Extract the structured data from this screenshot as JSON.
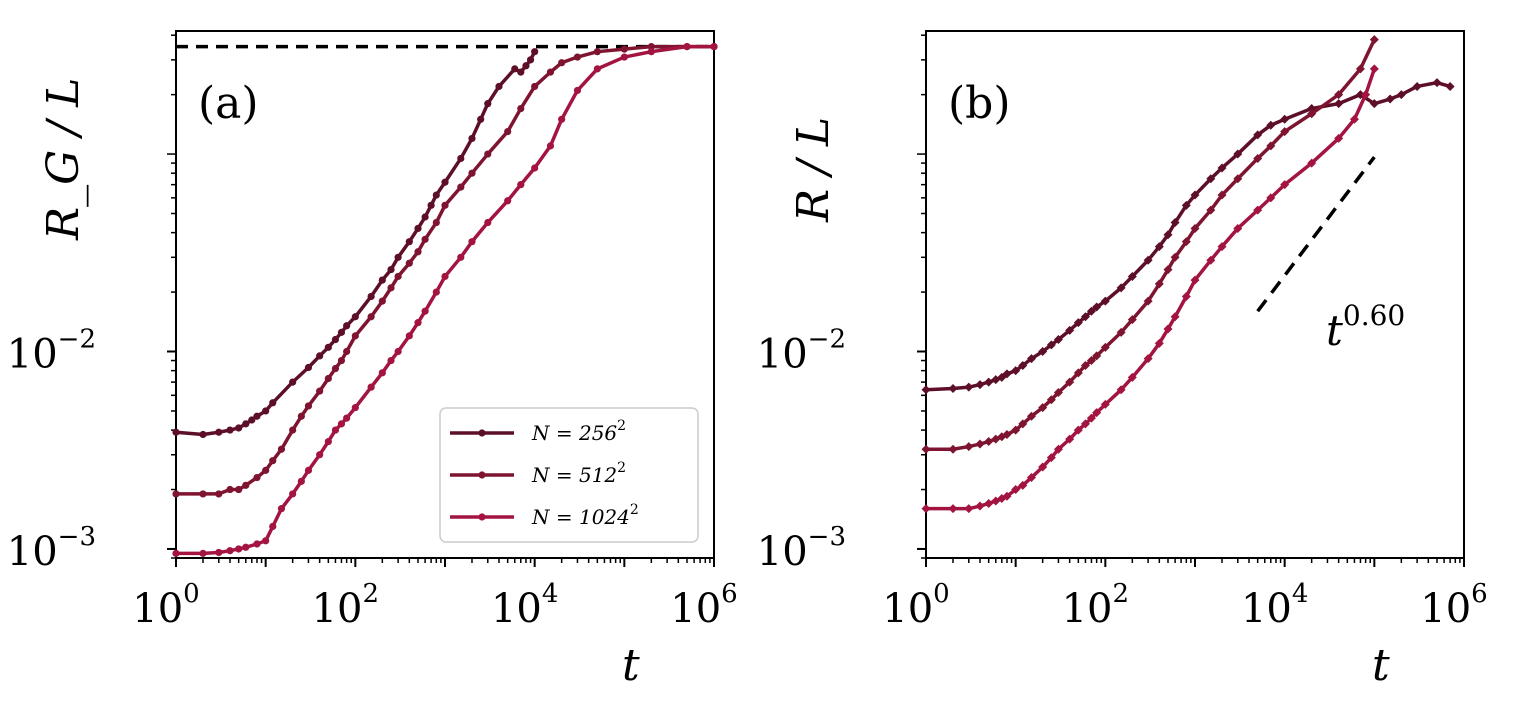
{
  "chart_data": [
    {
      "type": "line",
      "panel": "(a)",
      "xlabel": "t",
      "ylabel": "R_G / L",
      "xscale": "log",
      "yscale": "log",
      "xlim": [
        1,
        1000000
      ],
      "ylim": [
        0.0009,
        0.42
      ],
      "x_ticks": [
        {
          "base": "10",
          "exp": "0",
          "v": 1
        },
        {
          "base": "10",
          "exp": "2",
          "v": 100
        },
        {
          "base": "10",
          "exp": "4",
          "v": 10000
        },
        {
          "base": "10",
          "exp": "6",
          "v": 1000000
        }
      ],
      "y_ticks": [
        {
          "base": "10",
          "exp": "−3",
          "v": 0.001
        },
        {
          "base": "10",
          "exp": "−2",
          "v": 0.01
        }
      ],
      "reference_line": {
        "y": 0.35,
        "style": "dashed"
      },
      "legend": {
        "placement": "lower-right"
      },
      "series": [
        {
          "name": "N = 256",
          "exp": "2",
          "color": "#5e0f28",
          "x": [
            1,
            2,
            3,
            4,
            5,
            6,
            7,
            8,
            10,
            12,
            20,
            30,
            40,
            50,
            60,
            70,
            80,
            100,
            150,
            200,
            250,
            300,
            400,
            500,
            600,
            700,
            800,
            1000,
            1500,
            2000,
            2500,
            3000,
            4000,
            6000,
            7000,
            8000,
            9000,
            10000
          ],
          "y": [
            0.0039,
            0.0038,
            0.0039,
            0.004,
            0.0041,
            0.0043,
            0.0045,
            0.0047,
            0.005,
            0.0055,
            0.007,
            0.0083,
            0.0095,
            0.0105,
            0.0115,
            0.0125,
            0.0135,
            0.015,
            0.019,
            0.023,
            0.026,
            0.03,
            0.036,
            0.042,
            0.048,
            0.055,
            0.062,
            0.072,
            0.095,
            0.12,
            0.15,
            0.18,
            0.22,
            0.27,
            0.26,
            0.28,
            0.3,
            0.33
          ]
        },
        {
          "name": "N = 512",
          "exp": "2",
          "color": "#7f1430",
          "x": [
            1,
            2,
            3,
            4,
            5,
            6,
            8,
            10,
            12,
            15,
            20,
            25,
            30,
            40,
            50,
            60,
            70,
            80,
            100,
            150,
            200,
            250,
            300,
            400,
            500,
            600,
            800,
            1000,
            1500,
            2000,
            3000,
            5000,
            7000,
            10000,
            15000,
            20000,
            30000,
            50000,
            100000,
            200000,
            500000,
            1000000
          ],
          "y": [
            0.0019,
            0.0019,
            0.0019,
            0.002,
            0.002,
            0.0021,
            0.0023,
            0.0025,
            0.0028,
            0.0032,
            0.004,
            0.0047,
            0.0053,
            0.0063,
            0.0073,
            0.0082,
            0.009,
            0.01,
            0.012,
            0.015,
            0.018,
            0.021,
            0.024,
            0.028,
            0.032,
            0.037,
            0.045,
            0.055,
            0.068,
            0.08,
            0.1,
            0.13,
            0.17,
            0.22,
            0.26,
            0.29,
            0.31,
            0.33,
            0.34,
            0.35,
            0.35,
            0.35
          ]
        },
        {
          "name": "N = 1024",
          "exp": "2",
          "color": "#a31440",
          "x": [
            1,
            2,
            3,
            4,
            5,
            6,
            8,
            10,
            12,
            15,
            20,
            25,
            30,
            40,
            50,
            60,
            70,
            80,
            100,
            150,
            200,
            250,
            300,
            400,
            500,
            600,
            800,
            1000,
            1500,
            2000,
            3000,
            5000,
            7000,
            10000,
            15000,
            20000,
            30000,
            50000,
            100000,
            200000,
            500000,
            1000000
          ],
          "y": [
            0.00095,
            0.00095,
            0.00096,
            0.00098,
            0.001,
            0.00102,
            0.00106,
            0.0011,
            0.0013,
            0.0016,
            0.0019,
            0.0022,
            0.0025,
            0.003,
            0.0035,
            0.004,
            0.0043,
            0.0046,
            0.0052,
            0.0066,
            0.0078,
            0.009,
            0.01,
            0.012,
            0.014,
            0.016,
            0.02,
            0.024,
            0.03,
            0.036,
            0.045,
            0.058,
            0.07,
            0.085,
            0.11,
            0.15,
            0.21,
            0.27,
            0.31,
            0.33,
            0.35,
            0.35
          ]
        }
      ]
    },
    {
      "type": "line",
      "panel": "(b)",
      "xlabel": "t",
      "ylabel": "R / L",
      "xscale": "log",
      "yscale": "log",
      "xlim": [
        1,
        1000000
      ],
      "ylim": [
        0.0009,
        0.42
      ],
      "x_ticks": [
        {
          "base": "10",
          "exp": "0",
          "v": 1
        },
        {
          "base": "10",
          "exp": "2",
          "v": 100
        },
        {
          "base": "10",
          "exp": "4",
          "v": 10000
        },
        {
          "base": "10",
          "exp": "6",
          "v": 1000000
        }
      ],
      "y_ticks": [
        {
          "base": "10",
          "exp": "−3",
          "v": 0.001
        },
        {
          "base": "10",
          "exp": "−2",
          "v": 0.01
        }
      ],
      "power_law": {
        "label_base": "t",
        "label_exp": "0.60",
        "exponent": 0.6,
        "x_range": [
          5000,
          100000
        ],
        "y_start": 0.016
      },
      "series": [
        {
          "name": "N = 256",
          "exp": "2",
          "color": "#5e0f28",
          "x": [
            1,
            2,
            3,
            4,
            5,
            6,
            7,
            8,
            10,
            12,
            15,
            20,
            25,
            30,
            40,
            50,
            60,
            70,
            80,
            100,
            150,
            200,
            300,
            400,
            500,
            600,
            800,
            1000,
            1500,
            2000,
            3000,
            5000,
            7000,
            10000,
            20000,
            40000,
            70000,
            100000,
            150000,
            200000,
            300000,
            500000,
            700000
          ],
          "y": [
            0.0064,
            0.0065,
            0.0066,
            0.0068,
            0.007,
            0.0072,
            0.0074,
            0.0077,
            0.008,
            0.0085,
            0.0092,
            0.01,
            0.0108,
            0.0115,
            0.0128,
            0.014,
            0.015,
            0.016,
            0.0168,
            0.018,
            0.021,
            0.024,
            0.029,
            0.034,
            0.039,
            0.045,
            0.055,
            0.062,
            0.075,
            0.085,
            0.1,
            0.125,
            0.14,
            0.15,
            0.17,
            0.18,
            0.2,
            0.18,
            0.19,
            0.2,
            0.22,
            0.23,
            0.22
          ]
        },
        {
          "name": "N = 512",
          "exp": "2",
          "color": "#7f1430",
          "x": [
            1,
            2,
            3,
            4,
            5,
            6,
            7,
            8,
            10,
            12,
            15,
            20,
            25,
            30,
            40,
            50,
            60,
            70,
            80,
            100,
            150,
            200,
            300,
            400,
            500,
            600,
            800,
            1000,
            1500,
            2000,
            3000,
            5000,
            7000,
            10000,
            20000,
            40000,
            70000,
            100000
          ],
          "y": [
            0.0032,
            0.0032,
            0.0033,
            0.0034,
            0.0035,
            0.0036,
            0.0037,
            0.0038,
            0.004,
            0.0043,
            0.0047,
            0.0052,
            0.0057,
            0.0062,
            0.007,
            0.0078,
            0.0085,
            0.009,
            0.0095,
            0.0105,
            0.0125,
            0.0145,
            0.018,
            0.022,
            0.026,
            0.03,
            0.036,
            0.042,
            0.052,
            0.062,
            0.075,
            0.095,
            0.11,
            0.13,
            0.16,
            0.2,
            0.27,
            0.38
          ]
        },
        {
          "name": "N = 1024",
          "exp": "2",
          "color": "#a31440",
          "x": [
            1,
            2,
            3,
            4,
            5,
            6,
            7,
            8,
            10,
            12,
            15,
            20,
            25,
            30,
            40,
            50,
            60,
            70,
            80,
            100,
            150,
            200,
            300,
            400,
            500,
            600,
            800,
            1000,
            1500,
            2000,
            3000,
            5000,
            7000,
            10000,
            20000,
            40000,
            60000,
            80000,
            100000
          ],
          "y": [
            0.0016,
            0.0016,
            0.0016,
            0.00165,
            0.0017,
            0.00175,
            0.0018,
            0.00185,
            0.002,
            0.0021,
            0.0023,
            0.0026,
            0.0029,
            0.0032,
            0.0036,
            0.004,
            0.0043,
            0.0046,
            0.0049,
            0.0054,
            0.0064,
            0.0074,
            0.0092,
            0.011,
            0.013,
            0.015,
            0.019,
            0.023,
            0.029,
            0.034,
            0.042,
            0.052,
            0.06,
            0.07,
            0.09,
            0.12,
            0.15,
            0.2,
            0.27
          ]
        }
      ]
    }
  ]
}
